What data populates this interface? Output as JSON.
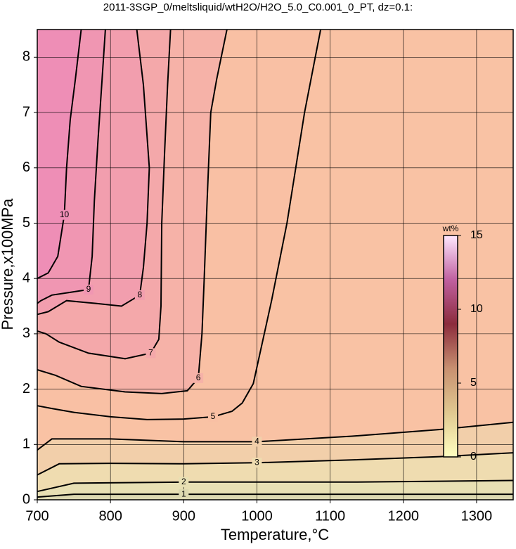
{
  "chart_data": {
    "type": "contour",
    "title": "2011-3SGP_0/meltsliquid/wtH2O/H2O_5.0_C0.001_0_PT, dz=0.1:",
    "x_label": "Temperature,°C",
    "y_label": "Pressure,x100MPa",
    "xlim": [
      700,
      1350
    ],
    "ylim": [
      0,
      8.5
    ],
    "xticks": [
      700,
      800,
      900,
      1000,
      1100,
      1200,
      1300
    ],
    "yticks": [
      0,
      1,
      2,
      3,
      4,
      5,
      6,
      7,
      8
    ],
    "grid": true,
    "background": "#f9c2a4",
    "contours": [
      {
        "level": 5,
        "color": "#f9c0a4",
        "x": [
          1087,
          1065,
          1041,
          1020,
          995,
          980,
          966,
          940,
          900,
          850,
          800,
          750,
          720,
          700
        ],
        "y": [
          8.5,
          7.0,
          5.0,
          3.6,
          2.1,
          1.75,
          1.6,
          1.5,
          1.46,
          1.45,
          1.5,
          1.58,
          1.65,
          1.7
        ]
      },
      {
        "level": 6,
        "color": "#f6b2a8",
        "x": [
          959,
          945,
          937,
          932,
          928,
          925,
          920,
          905,
          870,
          820,
          760,
          725,
          700
        ],
        "y": [
          8.5,
          7.6,
          7.0,
          5.4,
          4.0,
          3.0,
          2.2,
          1.97,
          1.92,
          1.95,
          2.05,
          2.25,
          2.35
        ]
      },
      {
        "level": 7,
        "color": "#f4a8aa",
        "x": [
          882,
          878,
          874,
          870,
          869,
          866,
          855,
          820,
          770,
          730,
          712,
          700
        ],
        "y": [
          8.5,
          7.5,
          6.3,
          5.0,
          3.5,
          2.9,
          2.65,
          2.55,
          2.65,
          2.85,
          3.0,
          3.05
        ]
      },
      {
        "level": 8,
        "color": "#f29eae",
        "x": [
          836,
          845,
          853,
          850,
          845,
          840,
          815,
          780,
          740,
          715,
          700
        ],
        "y": [
          8.5,
          7.5,
          6.0,
          5.0,
          4.2,
          3.7,
          3.5,
          3.55,
          3.6,
          3.4,
          3.35
        ]
      },
      {
        "level": 9,
        "color": "#f096b2",
        "x": [
          793,
          788,
          783,
          778,
          775,
          770,
          745,
          720,
          705,
          700
        ],
        "y": [
          8.5,
          7.5,
          6.5,
          5.4,
          4.4,
          3.8,
          3.75,
          3.7,
          3.6,
          3.55
        ]
      },
      {
        "level": 10,
        "color": "#ee8eb6",
        "x": [
          760,
          752,
          745,
          740,
          737,
          728,
          715,
          700
        ],
        "y": [
          8.5,
          7.6,
          6.87,
          6.0,
          5.15,
          4.4,
          4.1,
          4.0
        ]
      },
      {
        "level": 4,
        "color": "#f2cfaa",
        "x": [
          700,
          720,
          800,
          900,
          1000,
          1130,
          1250,
          1350
        ],
        "y": [
          0.9,
          1.1,
          1.1,
          1.05,
          1.05,
          1.15,
          1.27,
          1.4
        ]
      },
      {
        "level": 3,
        "color": "#efdcb0",
        "x": [
          700,
          730,
          800,
          900,
          1000,
          1130,
          1250,
          1350
        ],
        "y": [
          0.45,
          0.65,
          0.66,
          0.65,
          0.67,
          0.72,
          0.78,
          0.85
        ]
      },
      {
        "level": 2,
        "color": "#e8e0b4",
        "x": [
          700,
          750,
          900,
          1130,
          1350
        ],
        "y": [
          0.15,
          0.3,
          0.32,
          0.32,
          0.35
        ]
      },
      {
        "level": 1,
        "color": "#dcd8b0",
        "x": [
          700,
          750,
          900,
          1130,
          1350
        ],
        "y": [
          0.05,
          0.1,
          0.1,
          0.1,
          0.1
        ]
      }
    ],
    "colorbar": {
      "label": "wt%",
      "lim": [
        0,
        15
      ],
      "ticks": [
        0,
        5,
        10,
        15
      ],
      "colors": [
        "#ffffc0",
        "#e0c890",
        "#c89070",
        "#8c2c3c",
        "#c060a0",
        "#ffe8ff"
      ]
    }
  }
}
